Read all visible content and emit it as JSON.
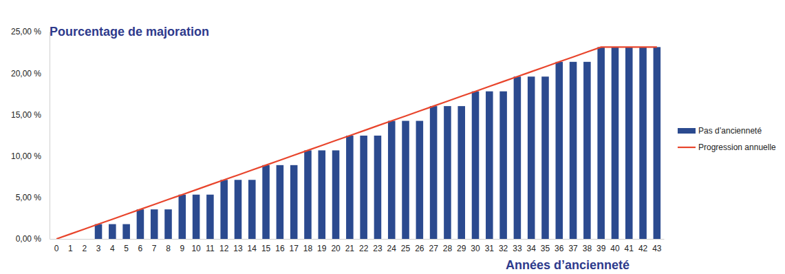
{
  "chart_data": {
    "type": "bar",
    "y_label": "Pourcentage de majoration",
    "x_label": "Années d’ancienneté",
    "categories": [
      "0",
      "1",
      "2",
      "3",
      "4",
      "5",
      "6",
      "7",
      "8",
      "9",
      "10",
      "11",
      "12",
      "13",
      "14",
      "15",
      "16",
      "17",
      "18",
      "19",
      "20",
      "21",
      "22",
      "23",
      "24",
      "25",
      "26",
      "27",
      "28",
      "29",
      "30",
      "31",
      "32",
      "33",
      "34",
      "35",
      "36",
      "37",
      "38",
      "39",
      "40",
      "41",
      "42",
      "43"
    ],
    "series": [
      {
        "name": "Pas d’ancienneté",
        "type": "bar",
        "color": "#2b4a8f",
        "values": [
          0,
          0,
          0,
          1.78,
          1.78,
          1.78,
          3.56,
          3.56,
          3.56,
          5.34,
          5.34,
          5.34,
          7.12,
          7.12,
          7.12,
          8.9,
          8.9,
          8.9,
          10.68,
          10.68,
          10.68,
          12.46,
          12.46,
          12.46,
          14.24,
          14.24,
          14.24,
          16.02,
          16.02,
          16.02,
          17.8,
          17.8,
          17.8,
          19.58,
          19.58,
          19.58,
          21.36,
          21.36,
          21.36,
          23.14,
          23.14,
          23.14,
          23.14,
          23.14
        ]
      },
      {
        "name": "Progression annuelle",
        "type": "line",
        "color": "#e8452c",
        "values": [
          0,
          0.59,
          1.19,
          1.78,
          2.37,
          2.97,
          3.56,
          4.15,
          4.75,
          5.34,
          5.93,
          6.53,
          7.12,
          7.71,
          8.31,
          8.9,
          9.49,
          10.09,
          10.68,
          11.27,
          11.87,
          12.46,
          13.05,
          13.65,
          14.24,
          14.83,
          15.43,
          16.02,
          16.61,
          17.21,
          17.8,
          18.39,
          18.99,
          19.58,
          20.17,
          20.77,
          21.36,
          21.95,
          22.55,
          23.14,
          23.14,
          23.14,
          23.14,
          23.14
        ]
      }
    ],
    "ylim": [
      0,
      25
    ],
    "yticks": [
      {
        "value": 0,
        "label": "0,00 %"
      },
      {
        "value": 5,
        "label": "5,00 %"
      },
      {
        "value": 10,
        "label": "10,00 %"
      },
      {
        "value": 15,
        "label": "15,00 %"
      },
      {
        "value": 20,
        "label": "20,00 %"
      },
      {
        "value": 25,
        "label": "25,00 %"
      }
    ],
    "grid": false,
    "legend": "right"
  }
}
